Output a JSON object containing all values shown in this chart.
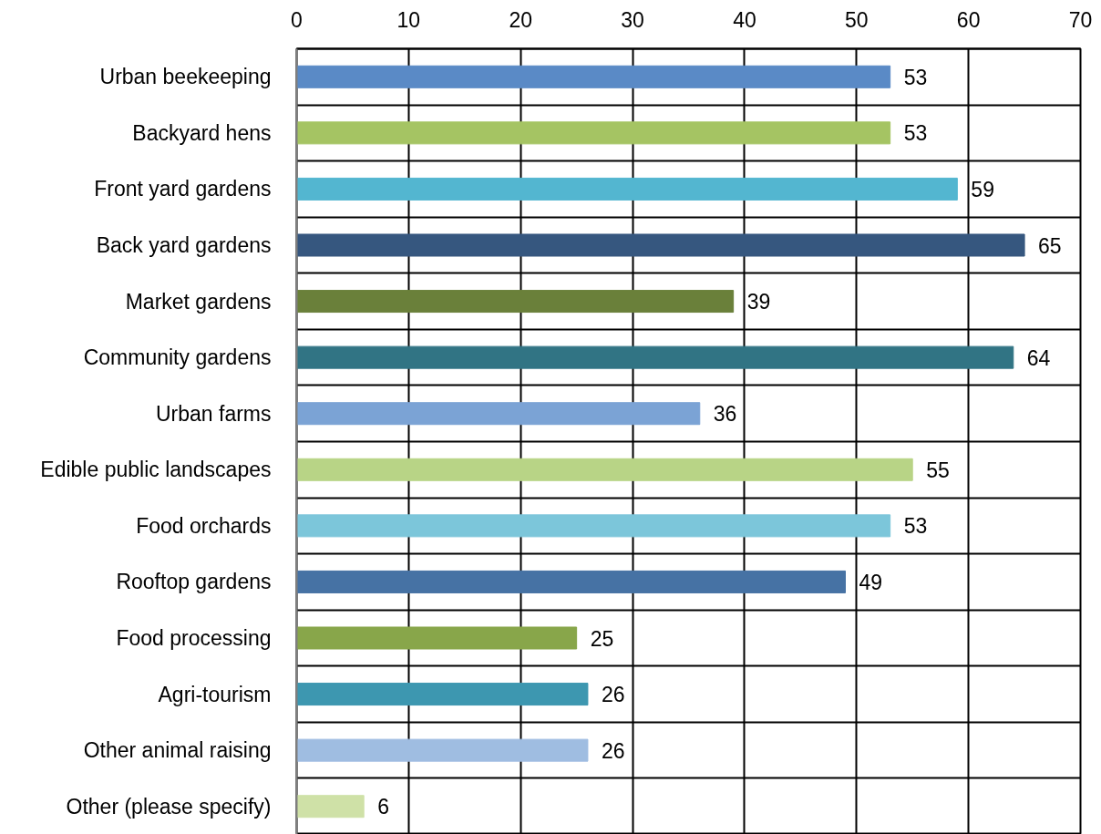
{
  "chart_data": {
    "type": "bar",
    "orientation": "horizontal",
    "categories": [
      "Urban beekeeping",
      "Backyard hens",
      "Front yard gardens",
      "Back yard gardens",
      "Market gardens",
      "Community gardens",
      "Urban farms",
      "Edible public landscapes",
      "Food orchards",
      "Rooftop gardens",
      "Food processing",
      "Agri-tourism",
      "Other animal raising",
      "Other (please specify)"
    ],
    "values": [
      53,
      53,
      59,
      65,
      39,
      64,
      36,
      55,
      53,
      49,
      25,
      26,
      26,
      6
    ],
    "colors": [
      "#5a8ac6",
      "#a5c463",
      "#53b6d0",
      "#36577f",
      "#6a803a",
      "#317484",
      "#7ba3d5",
      "#b8d486",
      "#7cc6da",
      "#4672a4",
      "#88a64a",
      "#3d97b0",
      "#9fbde1",
      "#cfe1a7"
    ],
    "xlim": [
      0,
      70
    ],
    "xticks": [
      0,
      10,
      20,
      30,
      40,
      50,
      60,
      70
    ],
    "grid": true,
    "data_labels": true
  }
}
